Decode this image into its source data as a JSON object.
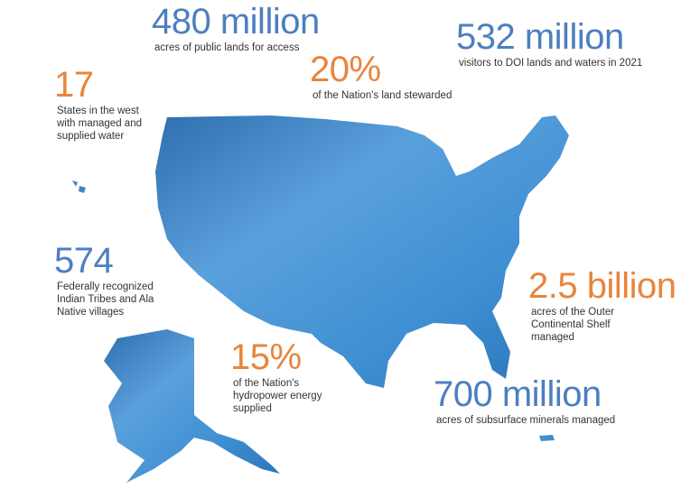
{
  "stats": [
    {
      "value": "480 million",
      "description": [
        "acres of public lands for access"
      ]
    },
    {
      "value": "532 million",
      "description": [
        "visitors to DOI lands and waters in 2021"
      ]
    },
    {
      "value": "20%",
      "description": [
        "of the Nation's land stewarded"
      ]
    },
    {
      "value": "17",
      "description": [
        "States in the west",
        "with managed and",
        "supplied water"
      ]
    },
    {
      "value": "574",
      "description": [
        "Federally recognized",
        "Indian Tribes and Ala",
        "Native villages"
      ]
    },
    {
      "value": "2.5 billion",
      "description": [
        "acres of the Outer",
        "Continental Shelf",
        "managed"
      ]
    },
    {
      "value": "15%",
      "description": [
        "of the Nation's",
        "hydropower energy",
        "supplied"
      ]
    },
    {
      "value": "700 million",
      "description": [
        "acres of subsurface minerals managed"
      ]
    }
  ]
}
